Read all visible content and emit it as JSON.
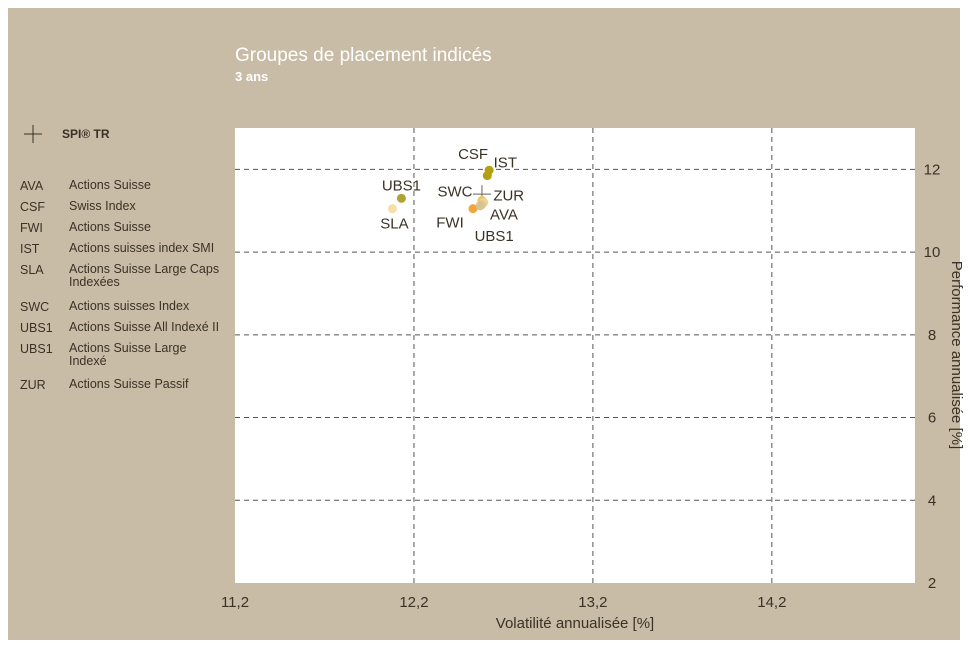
{
  "chart_data": {
    "type": "scatter",
    "title": "Groupes de placement indicés",
    "subtitle": "3 ans",
    "xlabel": "Volatilité annualisée [%]",
    "ylabel": "Performance annualisée [%]",
    "xlim": [
      11.2,
      15.0
    ],
    "ylim": [
      2,
      13
    ],
    "x_ticks": [
      11.2,
      12.2,
      13.2,
      14.2
    ],
    "x_tick_labels": [
      "11,2",
      "12,2",
      "13,2",
      "14,2"
    ],
    "y_ticks": [
      2,
      4,
      6,
      8,
      10,
      12
    ],
    "y_tick_labels": [
      "2",
      "4",
      "6",
      "8",
      "10",
      "12"
    ],
    "grid": true,
    "y_axis_position": "right",
    "reference": {
      "label": "SPI® TR",
      "x": 12.58,
      "y": 11.4
    },
    "points": [
      {
        "label": "CSF",
        "x": 12.62,
        "y": 11.98,
        "color": "#b39f14"
      },
      {
        "label": "IST",
        "x": 12.61,
        "y": 11.85,
        "color": "#b39f14"
      },
      {
        "label": "UBS1",
        "x": 12.13,
        "y": 11.3,
        "color": "#b0a234"
      },
      {
        "label": "SWC",
        "x": 12.58,
        "y": 11.25,
        "color": "#ecc46a"
      },
      {
        "label": "ZUR",
        "x": 12.59,
        "y": 11.2,
        "color": "#f1d48e"
      },
      {
        "label": "AVA",
        "x": 12.58,
        "y": 11.15,
        "color": "#e4cc94"
      },
      {
        "label": "SLA",
        "x": 12.08,
        "y": 11.05,
        "color": "#f4e0a6"
      },
      {
        "label": "FWI",
        "x": 12.53,
        "y": 11.05,
        "color": "#f2a53a"
      },
      {
        "label": "UBS1",
        "x": 12.57,
        "y": 11.12,
        "color": "#d9c38e"
      }
    ]
  },
  "legend": {
    "reference_label": "SPI® TR",
    "items": [
      {
        "code": "AVA",
        "name": "Actions Suisse"
      },
      {
        "code": "CSF",
        "name": "Swiss Index"
      },
      {
        "code": "FWI",
        "name": "Actions Suisse"
      },
      {
        "code": "IST",
        "name": "Actions suisses index SMI"
      },
      {
        "code": "SLA",
        "name": "Actions Suisse Large Caps Indexées"
      },
      {
        "code": "SWC",
        "name": "Actions suisses Index"
      },
      {
        "code": "UBS1",
        "name": "Actions Suisse All Indexé II"
      },
      {
        "code": "UBS1",
        "name": "Actions Suisse Large Indexé"
      },
      {
        "code": "ZUR",
        "name": "Actions Suisse Passif"
      }
    ]
  },
  "colors": {
    "background": "#c8bca6",
    "plot_area": "#ffffff",
    "grid": "#555555",
    "text": "#3a3226"
  }
}
